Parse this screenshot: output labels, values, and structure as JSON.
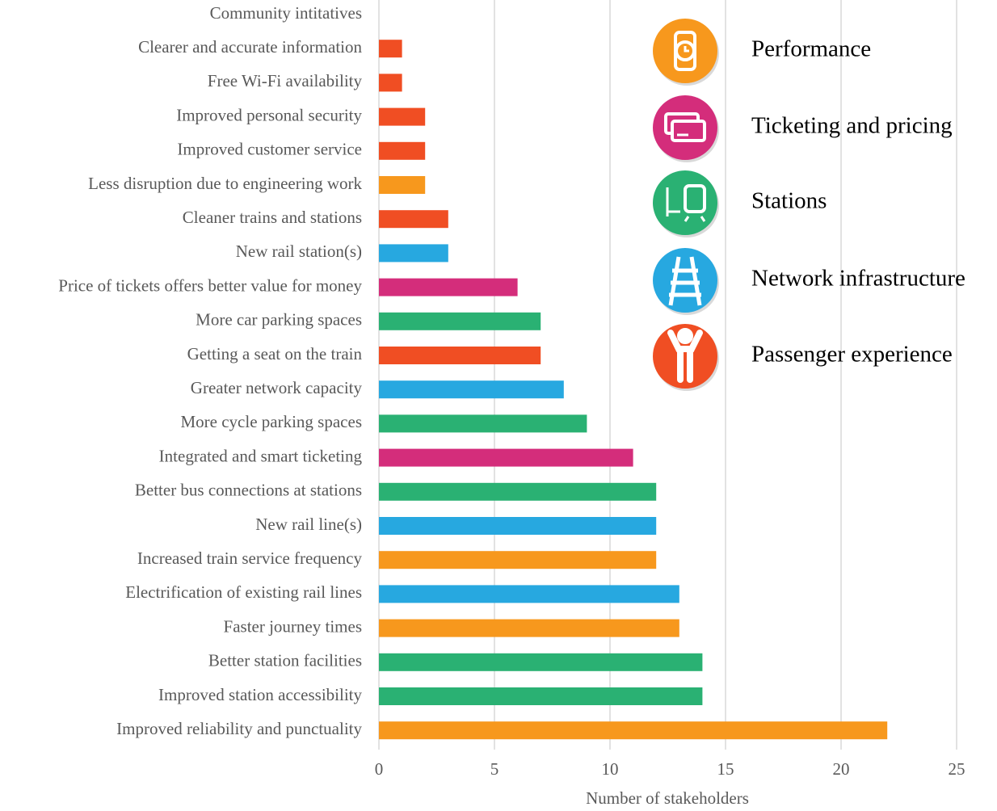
{
  "chart_data": {
    "type": "bar",
    "orientation": "horizontal",
    "x_label": "Number of stakeholders",
    "categories": [
      "Community intitatives",
      "Clearer and accurate information",
      "Free Wi-Fi availability",
      "Improved personal security",
      "Improved customer service",
      "Less disruption due to engineering work",
      "Cleaner trains and stations",
      "New rail station(s)",
      "Price of tickets offers better value for money",
      "More car parking spaces",
      "Getting a seat on the train",
      "Greater network capacity",
      "More cycle parking spaces",
      "Integrated and smart ticketing",
      "Better bus connections at stations",
      "New rail line(s)",
      "Increased train service frequency",
      "Electrification of existing rail lines",
      "Faster journey times",
      "Better station facilities",
      "Improved station accessibility",
      "Improved reliability and punctuality"
    ],
    "values": [
      0,
      1,
      1,
      2,
      2,
      2,
      3,
      3,
      6,
      7,
      7,
      8,
      9,
      11,
      12,
      12,
      12,
      13,
      13,
      14,
      14,
      22
    ],
    "colors": [
      "#F04E23",
      "#F04E23",
      "#F04E23",
      "#F04E23",
      "#F04E23",
      "#F7981D",
      "#F04E23",
      "#27A8E0",
      "#D42D7B",
      "#2AB173",
      "#F04E23",
      "#27A8E0",
      "#2AB173",
      "#D42D7B",
      "#2AB173",
      "#27A8E0",
      "#F7981D",
      "#27A8E0",
      "#F7981D",
      "#2AB173",
      "#2AB173",
      "#F7981D"
    ],
    "xlim": [
      0,
      25
    ],
    "xticks": [
      0,
      5,
      10,
      15,
      20,
      25
    ],
    "grid": true,
    "legend": [
      {
        "name": "Performance",
        "color": "#F7981D"
      },
      {
        "name": "Ticketing and pricing",
        "color": "#D42D7B"
      },
      {
        "name": "Stations",
        "color": "#2AB173"
      },
      {
        "name": "Network infrastructure",
        "color": "#27A8E0"
      },
      {
        "name": "Passenger experience",
        "color": "#F04E23"
      }
    ]
  }
}
